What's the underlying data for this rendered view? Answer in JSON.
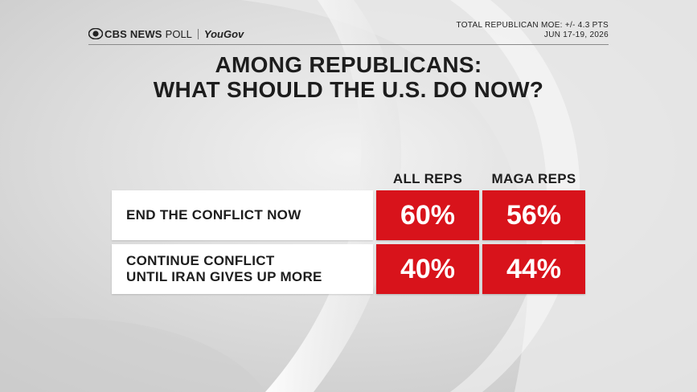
{
  "branding": {
    "network": "CBS NEWS",
    "poll": "POLL",
    "partner": "YouGov"
  },
  "moe": {
    "line1": "TOTAL REPUBLICAN MOE: +/- 4.3 PTS",
    "line2": "JUN 17-19, 2026"
  },
  "title": {
    "line1": "AMONG REPUBLICANS:",
    "line2": "WHAT SHOULD THE U.S. DO NOW?"
  },
  "chart_data": {
    "type": "table",
    "title": "AMONG REPUBLICANS: WHAT SHOULD THE U.S. DO NOW?",
    "columns": [
      "ALL REPS",
      "MAGA REPS"
    ],
    "rows": [
      {
        "label_line1": "END THE CONFLICT NOW",
        "label_line2": "",
        "values": [
          "60%",
          "56%"
        ]
      },
      {
        "label_line1": "CONTINUE CONFLICT",
        "label_line2": "UNTIL IRAN GIVES UP MORE",
        "values": [
          "40%",
          "44%"
        ]
      }
    ],
    "cell_color": "#d8131b"
  }
}
